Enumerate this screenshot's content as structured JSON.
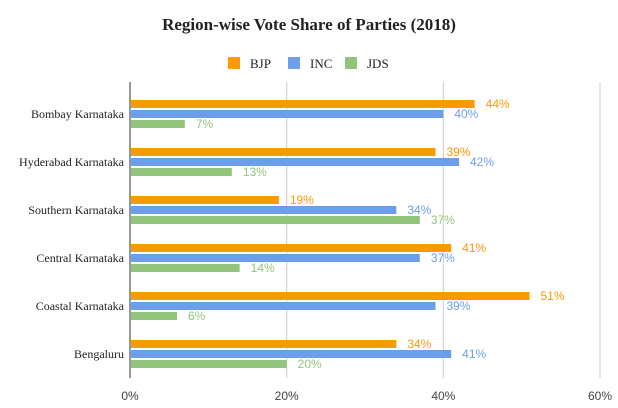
{
  "chart_data": {
    "type": "bar",
    "orientation": "horizontal",
    "title": "Region-wise Vote Share of Parties (2018)",
    "categories": [
      "Bombay Karnataka",
      "Hyderabad Karnataka",
      "Southern Karnataka",
      "Central Karnataka",
      "Coastal Karnataka",
      "Bengaluru"
    ],
    "series": [
      {
        "name": "BJP",
        "color": "#ff9900",
        "values": [
          44,
          39,
          19,
          41,
          51,
          34
        ],
        "labels": [
          "44%",
          "39%",
          "19%",
          "41%",
          "51%",
          "34%"
        ]
      },
      {
        "name": "INC",
        "color": "#6d9eeb",
        "values": [
          40,
          42,
          34,
          37,
          39,
          41
        ],
        "labels": [
          "40%",
          "42%",
          "34%",
          "37%",
          "39%",
          "41%"
        ]
      },
      {
        "name": "JDS",
        "color": "#93c47d",
        "values": [
          7,
          13,
          37,
          14,
          6,
          20
        ],
        "labels": [
          "7%",
          "13%",
          "37%",
          "14%",
          "6%",
          "20%"
        ]
      }
    ],
    "xlim": [
      0,
      60
    ],
    "xticks": [
      0,
      20,
      40,
      60
    ],
    "xtick_labels": [
      "0%",
      "20%",
      "40%",
      "60%"
    ],
    "grid": true,
    "legend": "top"
  }
}
